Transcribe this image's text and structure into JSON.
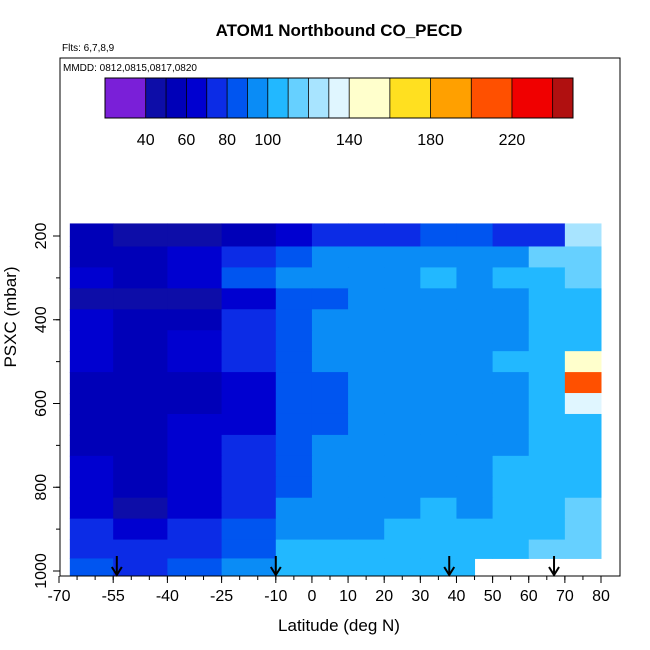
{
  "chart_data": {
    "type": "heatmap",
    "title": "ATOM1 Northbound CO_PECD",
    "subtitle_flights": "Flts: 6,7,8,9",
    "subtitle_dates": "MMDD: 0812,0815,0817,0820",
    "xlabel": "Latitude (deg N)",
    "ylabel": "PSXC (mbar)",
    "xlim": [
      -70,
      82
    ],
    "ylim": [
      1010,
      150
    ],
    "x_ticks": [
      -70,
      -55,
      -40,
      -25,
      -10,
      0,
      10,
      20,
      30,
      40,
      50,
      60,
      70,
      80
    ],
    "x_tick_labels": [
      "-70",
      "-55",
      "-40",
      "-25",
      "-10",
      "0",
      "10",
      "20",
      "30",
      "40",
      "50",
      "60",
      "70",
      "80"
    ],
    "y_ticks": [
      200,
      400,
      600,
      800,
      1000
    ],
    "y_tick_labels": [
      "200",
      "400",
      "600",
      "800",
      "1000"
    ],
    "colorbar": {
      "range": [
        20,
        250
      ],
      "tick_values": [
        40,
        60,
        80,
        100,
        140,
        180,
        220
      ],
      "tick_labels": [
        "40",
        "60",
        "80",
        "100",
        "140",
        "180",
        "220"
      ],
      "boundaries": [
        20,
        40,
        50,
        60,
        70,
        80,
        90,
        100,
        110,
        120,
        130,
        140,
        160,
        180,
        200,
        220,
        240,
        250
      ],
      "colors": [
        "#7a1fd8",
        "#0d0da8",
        "#0000b8",
        "#0000d0",
        "#0c2ce6",
        "#0055f0",
        "#0a8cf6",
        "#22b8ff",
        "#66d0ff",
        "#a8e4ff",
        "#e0f6ff",
        "#ffffcc",
        "#ffe020",
        "#ffa000",
        "#ff5000",
        "#f00000",
        "#b01010"
      ]
    },
    "latitude_bins": [
      -70,
      -55,
      -40,
      -25,
      -10,
      0,
      10,
      20,
      30,
      40,
      50,
      60,
      70,
      82
    ],
    "pressure_levels_mbar": [
      200,
      250,
      300,
      350,
      400,
      450,
      500,
      550,
      600,
      650,
      700,
      750,
      800,
      850,
      900,
      950,
      990
    ],
    "co_values_ppbv": [
      [
        50,
        45,
        48,
        50,
        60,
        70,
        75,
        78,
        80,
        82,
        78,
        72,
        120
      ],
      [
        58,
        55,
        60,
        75,
        88,
        90,
        92,
        92,
        95,
        90,
        92,
        110,
        115
      ],
      [
        62,
        58,
        60,
        80,
        92,
        95,
        95,
        98,
        100,
        95,
        100,
        105,
        110
      ],
      [
        48,
        42,
        45,
        60,
        80,
        88,
        90,
        92,
        96,
        94,
        96,
        105,
        108
      ],
      [
        60,
        55,
        58,
        70,
        85,
        90,
        92,
        94,
        95,
        92,
        96,
        100,
        105
      ],
      [
        62,
        58,
        62,
        75,
        88,
        92,
        94,
        95,
        96,
        94,
        98,
        102,
        108
      ],
      [
        60,
        56,
        60,
        72,
        86,
        90,
        93,
        95,
        96,
        94,
        100,
        105,
        140
      ],
      [
        58,
        55,
        58,
        68,
        84,
        88,
        92,
        94,
        95,
        92,
        98,
        102,
        200
      ],
      [
        56,
        54,
        58,
        66,
        82,
        86,
        90,
        92,
        94,
        92,
        96,
        100,
        130
      ],
      [
        58,
        56,
        60,
        68,
        84,
        88,
        92,
        94,
        95,
        93,
        96,
        100,
        105
      ],
      [
        58,
        55,
        60,
        70,
        86,
        90,
        93,
        95,
        96,
        94,
        98,
        102,
        106
      ],
      [
        60,
        56,
        62,
        72,
        88,
        92,
        94,
        96,
        98,
        96,
        100,
        104,
        108
      ],
      [
        62,
        58,
        62,
        74,
        88,
        92,
        95,
        97,
        98,
        96,
        100,
        104,
        108
      ],
      [
        64,
        45,
        64,
        76,
        90,
        94,
        96,
        98,
        100,
        98,
        102,
        106,
        110
      ],
      [
        70,
        68,
        70,
        80,
        94,
        96,
        98,
        100,
        100,
        100,
        104,
        108,
        110
      ],
      [
        76,
        74,
        76,
        88,
        100,
        102,
        104,
        104,
        104,
        104,
        106,
        110,
        112
      ],
      [
        80,
        78,
        80,
        92,
        102,
        104,
        104,
        104,
        104,
        104,
        104,
        104,
        104
      ]
    ],
    "arrow_latitudes": [
      -54,
      -10,
      38,
      67
    ],
    "grid": false,
    "legend_position": "top"
  }
}
